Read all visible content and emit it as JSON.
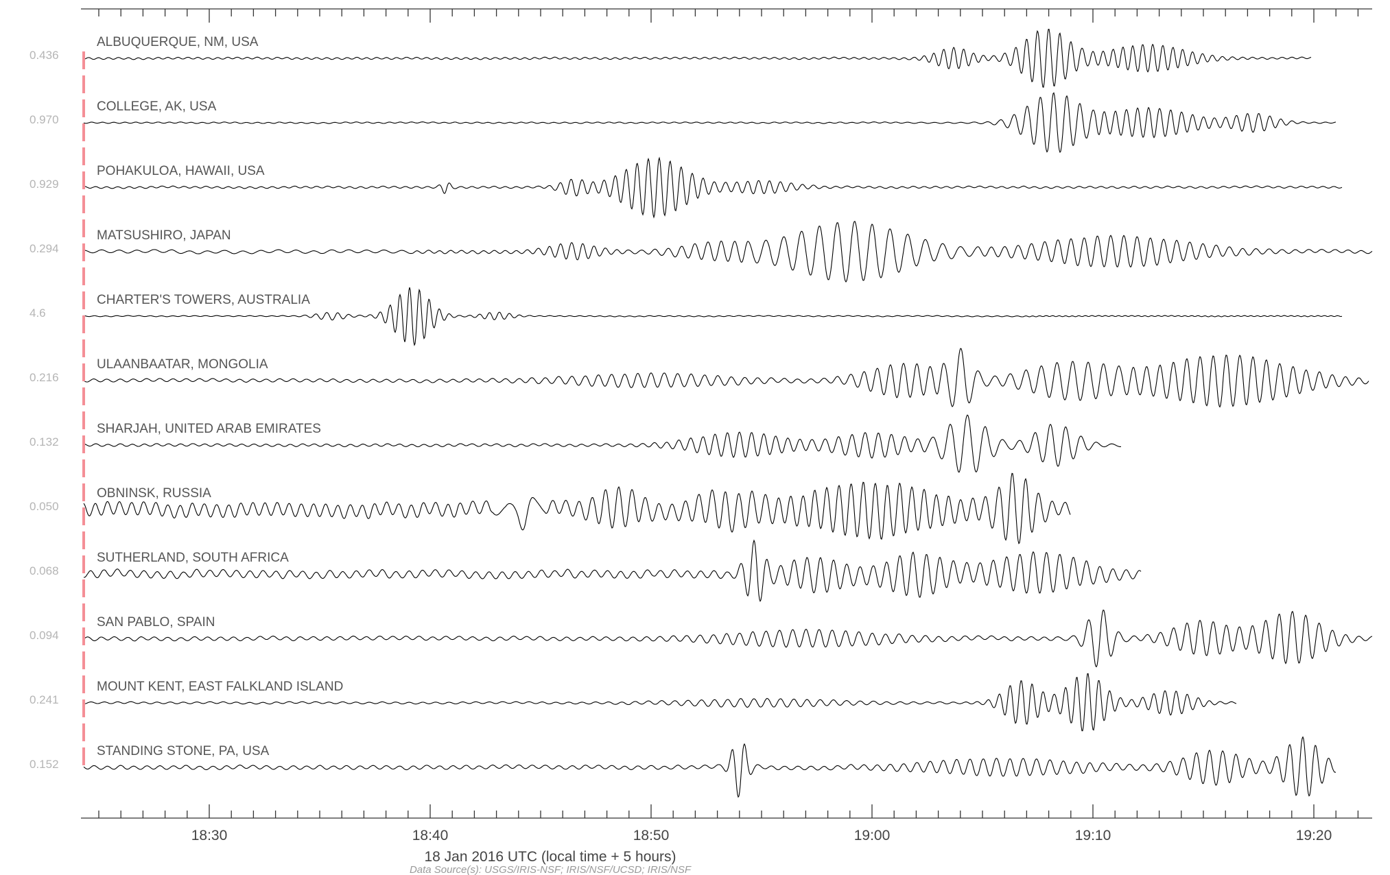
{
  "chart_data": {
    "type": "line",
    "title": "",
    "xlabel": "18 Jan 2016 UTC (local time + 5 hours)",
    "ylabel": "",
    "x_range_minutes": [
      18.4,
      78.7
    ],
    "x_ticks": [
      {
        "minute": 30,
        "label": "18:30"
      },
      {
        "minute": 40,
        "label": "18:40"
      },
      {
        "minute": 50,
        "label": "18:50"
      },
      {
        "minute": 60,
        "label": "19:00"
      },
      {
        "minute": 70,
        "label": "19:10"
      },
      {
        "minute": 80,
        "label": "19:20"
      }
    ],
    "minor_tick_every_minutes": 1,
    "event_marker_minute": 24.5,
    "source_text": "Data Source(s): USGS/IRIS-NSF; IRIS/NSF/UCSD; IRIS/NSF",
    "series": [
      {
        "name": "ALBUQUERQUE, NM, USA",
        "scale": "0.436",
        "end": 79.9,
        "noise": 0.03,
        "packets": [
          {
            "t": 63.7,
            "w": 1.2,
            "a": 0.35,
            "p": 0.45
          },
          {
            "t": 67.9,
            "w": 1.6,
            "a": 1.0,
            "p": 0.5
          },
          {
            "t": 72.5,
            "w": 2.6,
            "a": 0.45,
            "p": 0.45
          }
        ]
      },
      {
        "name": "COLLEGE, AK, USA",
        "scale": "0.970",
        "end": 81.0,
        "noise": 0.02,
        "packets": [
          {
            "t": 68.2,
            "w": 1.8,
            "a": 1.0,
            "p": 0.6
          },
          {
            "t": 72.5,
            "w": 3.0,
            "a": 0.5,
            "p": 0.5
          },
          {
            "t": 77.3,
            "w": 1.4,
            "a": 0.3,
            "p": 0.5
          }
        ]
      },
      {
        "name": "POHAKULOA, HAWAII, USA",
        "scale": "0.929",
        "end": 81.3,
        "noise": 0.03,
        "packets": [
          {
            "t": 40.7,
            "w": 0.3,
            "a": 0.2,
            "p": 0.5
          },
          {
            "t": 46.5,
            "w": 0.9,
            "a": 0.25,
            "p": 0.5
          },
          {
            "t": 50.2,
            "w": 2.2,
            "a": 1.0,
            "p": 0.5
          },
          {
            "t": 55.0,
            "w": 2.0,
            "a": 0.2,
            "p": 0.5
          }
        ]
      },
      {
        "name": "MATSUSHIRO, JAPAN",
        "scale": "0.294",
        "end": 83.0,
        "noise": 0.05,
        "packets": [
          {
            "t": 46.5,
            "w": 1.5,
            "a": 0.25,
            "p": 0.5
          },
          {
            "t": 53.0,
            "w": 2.5,
            "a": 0.25,
            "p": 0.6
          },
          {
            "t": 59.0,
            "w": 4.0,
            "a": 1.0,
            "p": 0.8
          },
          {
            "t": 71.0,
            "w": 5.0,
            "a": 0.5,
            "p": 0.6
          }
        ]
      },
      {
        "name": "CHARTER'S TOWERS, AUSTRALIA",
        "scale": "4.6",
        "end": 81.3,
        "noise": 0.015,
        "packets": [
          {
            "t": 35.5,
            "w": 1.0,
            "a": 0.12,
            "p": 0.5
          },
          {
            "t": 39.2,
            "w": 1.2,
            "a": 1.0,
            "p": 0.45
          },
          {
            "t": 43.0,
            "w": 1.0,
            "a": 0.12,
            "p": 0.45
          }
        ]
      },
      {
        "name": "ULAANBAATAR, MONGOLIA",
        "scale": "0.216",
        "end": 82.5,
        "noise": 0.05,
        "packets": [
          {
            "t": 50.0,
            "w": 5.0,
            "a": 0.2,
            "p": 0.6
          },
          {
            "t": 61.5,
            "w": 2.5,
            "a": 0.55,
            "p": 0.6
          },
          {
            "t": 64.0,
            "w": 0.8,
            "a": 0.9,
            "p": 0.8
          },
          {
            "t": 69.0,
            "w": 3.0,
            "a": 0.6,
            "p": 0.7
          },
          {
            "t": 76.0,
            "w": 4.5,
            "a": 0.85,
            "p": 0.6
          }
        ]
      },
      {
        "name": "SHARJAH, UNITED ARAB EMIRATES",
        "scale": "0.132",
        "end": 71.3,
        "noise": 0.04,
        "packets": [
          {
            "t": 54.0,
            "w": 3.0,
            "a": 0.4,
            "p": 0.55
          },
          {
            "t": 60.0,
            "w": 2.5,
            "a": 0.4,
            "p": 0.6
          },
          {
            "t": 64.3,
            "w": 1.4,
            "a": 1.0,
            "p": 0.8
          },
          {
            "t": 68.3,
            "w": 1.4,
            "a": 0.7,
            "p": 0.7
          }
        ]
      },
      {
        "name": "OBNINSK, RUSSIA",
        "scale": "0.050",
        "end": 69.0,
        "noise": 0.22,
        "packets": [
          {
            "t": 44.3,
            "w": 0.4,
            "a": 0.6,
            "p": 1.2
          },
          {
            "t": 48.5,
            "w": 1.5,
            "a": 0.5,
            "p": 0.6
          },
          {
            "t": 53.5,
            "w": 2.0,
            "a": 0.45,
            "p": 0.6
          },
          {
            "t": 60.0,
            "w": 4.0,
            "a": 0.75,
            "p": 0.55
          },
          {
            "t": 66.5,
            "w": 1.2,
            "a": 1.0,
            "p": 0.6
          }
        ]
      },
      {
        "name": "SUTHERLAND, SOUTH AFRICA",
        "scale": "0.068",
        "end": 72.2,
        "noise": 0.12,
        "packets": [
          {
            "t": 54.7,
            "w": 0.6,
            "a": 1.0,
            "p": 0.6
          },
          {
            "t": 57.5,
            "w": 2.0,
            "a": 0.5,
            "p": 0.6
          },
          {
            "t": 62.0,
            "w": 2.0,
            "a": 0.65,
            "p": 0.6
          },
          {
            "t": 67.5,
            "w": 3.0,
            "a": 0.6,
            "p": 0.6
          }
        ]
      },
      {
        "name": "SAN PABLO, SPAIN",
        "scale": "0.094",
        "end": 83.0,
        "noise": 0.06,
        "packets": [
          {
            "t": 57.0,
            "w": 5.0,
            "a": 0.25,
            "p": 0.6
          },
          {
            "t": 70.3,
            "w": 0.8,
            "a": 1.0,
            "p": 0.7
          },
          {
            "t": 75.0,
            "w": 2.0,
            "a": 0.55,
            "p": 0.6
          },
          {
            "t": 79.0,
            "w": 2.0,
            "a": 0.85,
            "p": 0.6
          }
        ]
      },
      {
        "name": "MOUNT KENT, EAST FALKLAND ISLAND",
        "scale": "0.241",
        "end": 76.5,
        "noise": 0.03,
        "packets": [
          {
            "t": 55.0,
            "w": 5.0,
            "a": 0.12,
            "p": 0.6
          },
          {
            "t": 66.8,
            "w": 1.2,
            "a": 0.75,
            "p": 0.5
          },
          {
            "t": 69.7,
            "w": 1.3,
            "a": 1.0,
            "p": 0.5
          },
          {
            "t": 73.5,
            "w": 1.5,
            "a": 0.4,
            "p": 0.5
          }
        ]
      },
      {
        "name": "STANDING STONE, PA, USA",
        "scale": "0.152",
        "end": 81.0,
        "noise": 0.06,
        "packets": [
          {
            "t": 54.0,
            "w": 0.5,
            "a": 1.0,
            "p": 0.6
          },
          {
            "t": 66.0,
            "w": 5.0,
            "a": 0.25,
            "p": 0.6
          },
          {
            "t": 75.5,
            "w": 2.0,
            "a": 0.55,
            "p": 0.6
          },
          {
            "t": 79.5,
            "w": 1.2,
            "a": 1.0,
            "p": 0.6
          }
        ]
      }
    ]
  }
}
